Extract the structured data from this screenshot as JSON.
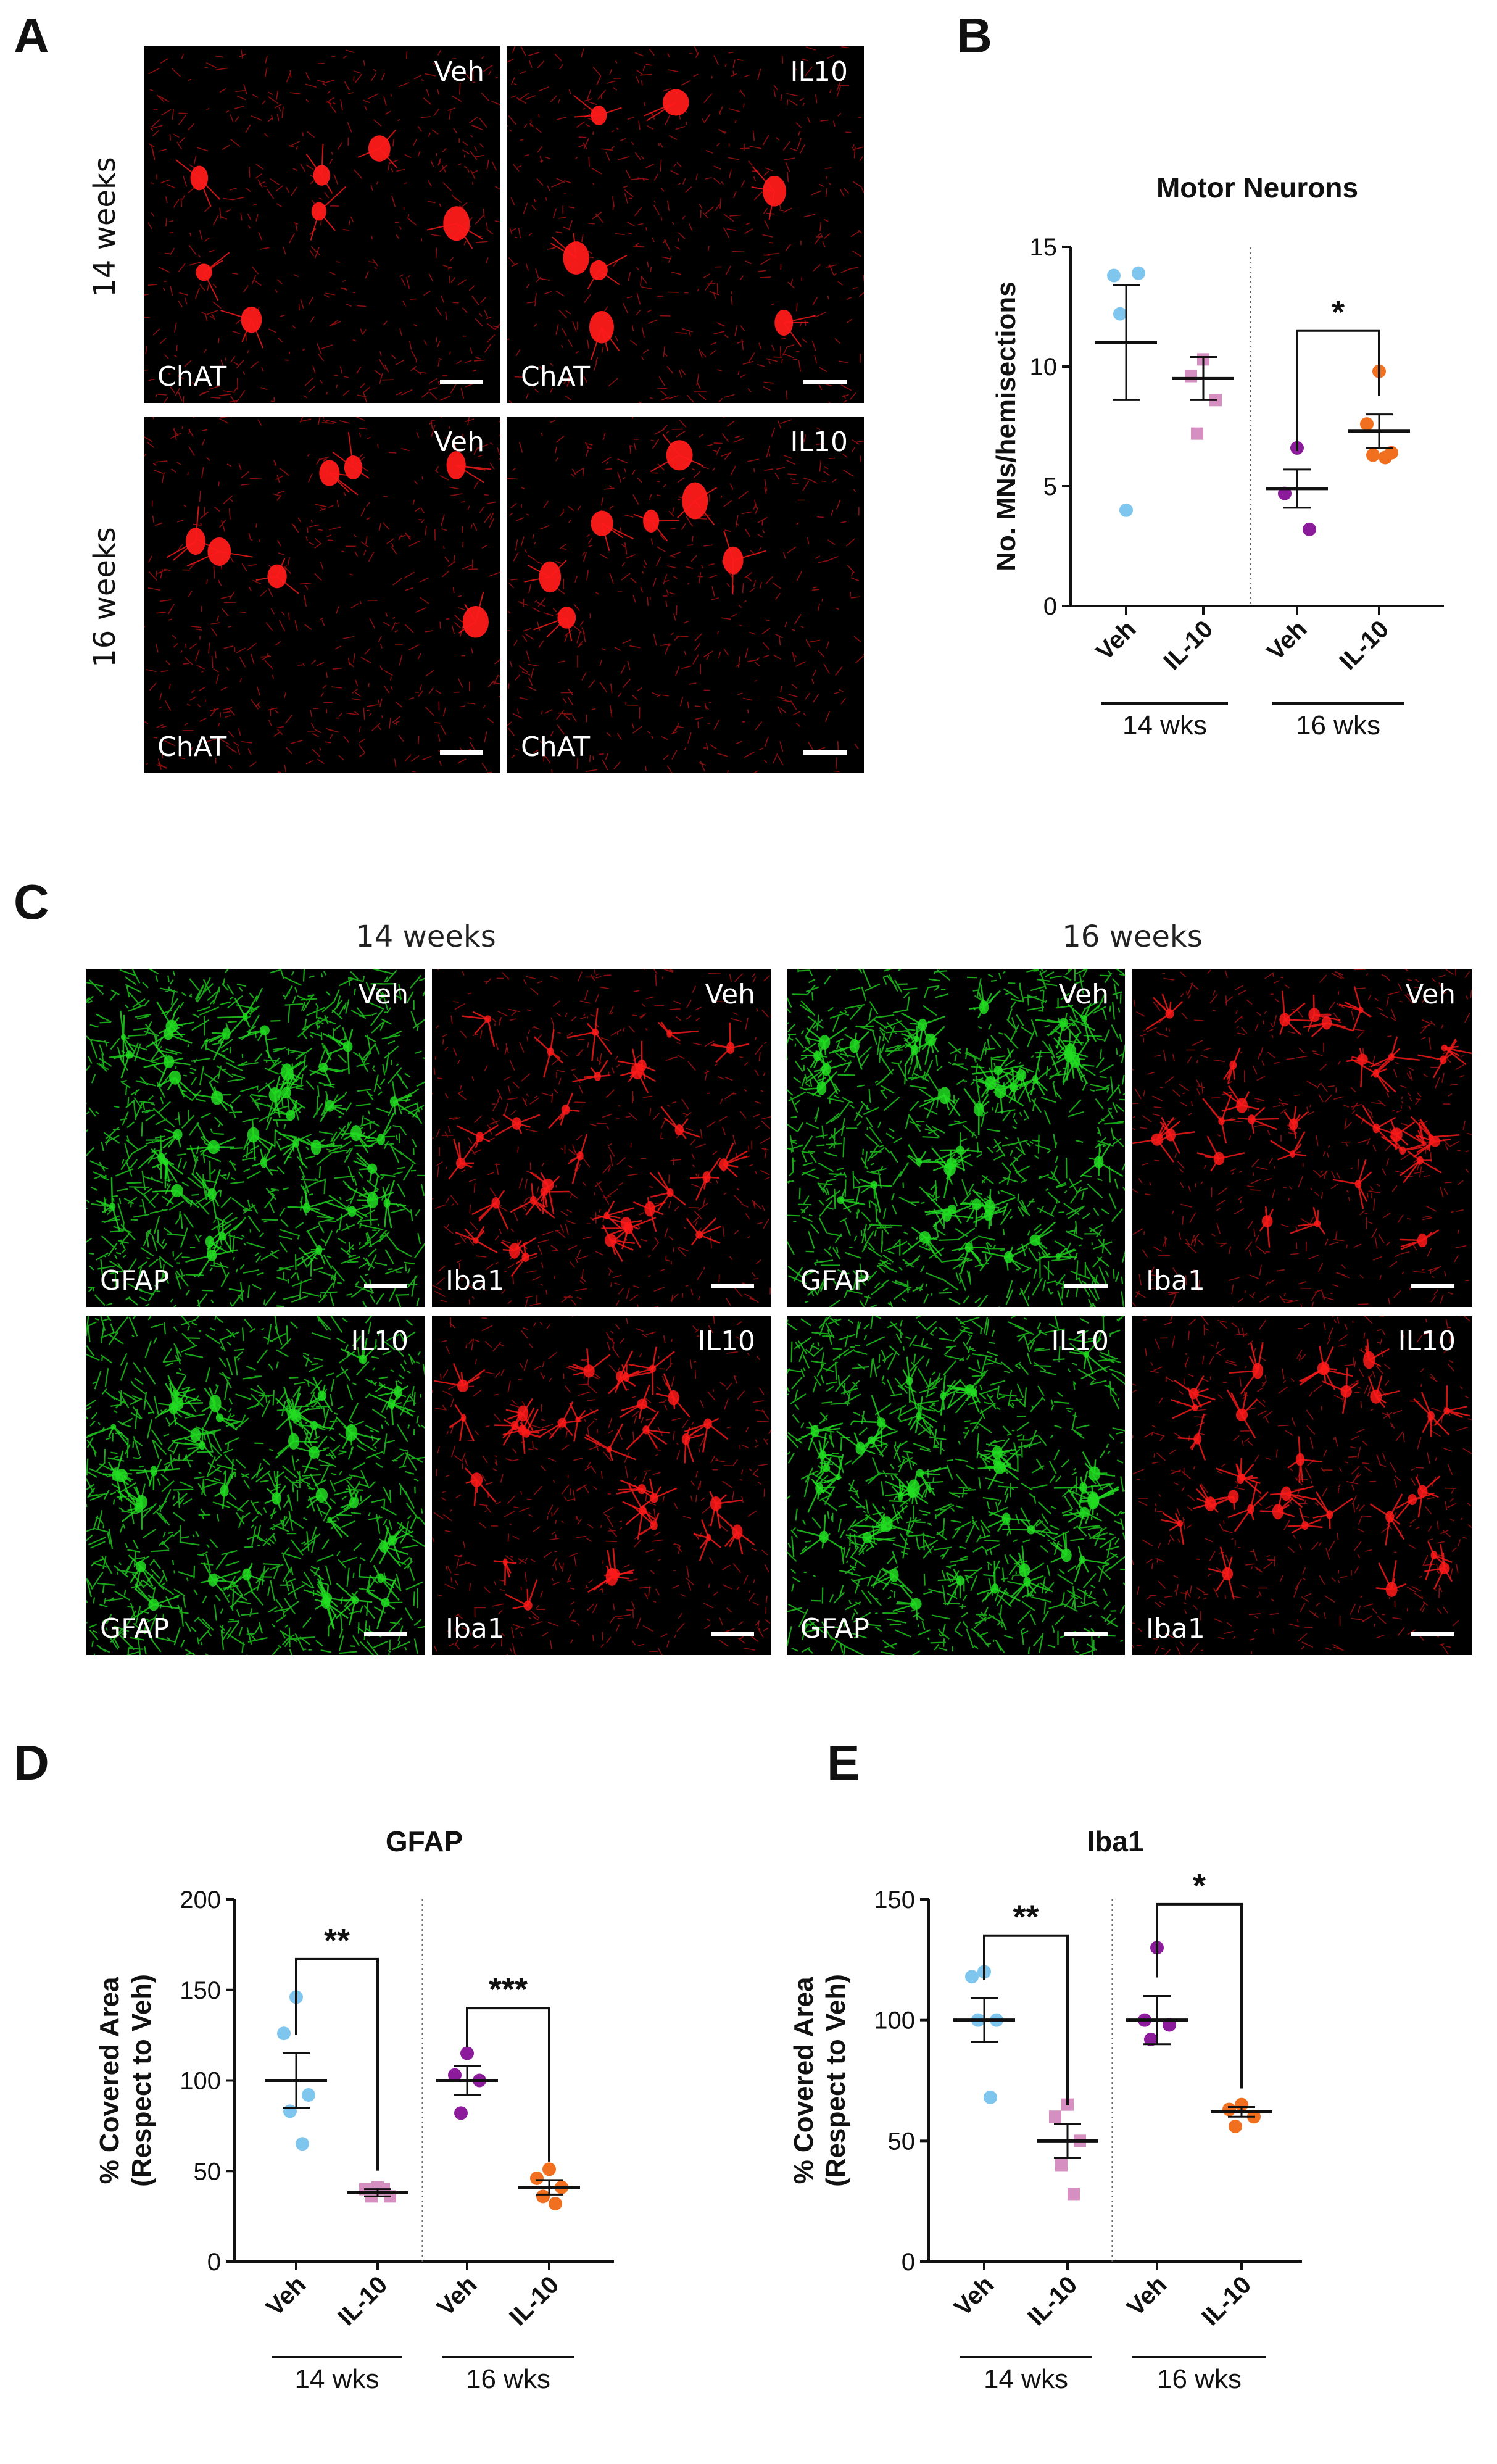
{
  "panel_letters": {
    "a": "A",
    "b": "B",
    "c": "C",
    "d": "D",
    "e": "E"
  },
  "panel_a": {
    "row_labels": [
      "14 weeks",
      "16 weeks"
    ],
    "tiles": [
      {
        "condition": "Veh",
        "stain": "ChAT",
        "color": "#ff1a1a"
      },
      {
        "condition": "IL10",
        "stain": "ChAT",
        "color": "#ff1a1a"
      },
      {
        "condition": "Veh",
        "stain": "ChAT",
        "color": "#ff1a1a"
      },
      {
        "condition": "IL10",
        "stain": "ChAT",
        "color": "#ff1a1a"
      }
    ]
  },
  "panel_c": {
    "group_headers": [
      "14 weeks",
      "16 weeks"
    ],
    "tiles": [
      {
        "condition": "Veh",
        "stain": "GFAP",
        "color": "#22dd22"
      },
      {
        "condition": "Veh",
        "stain": "Iba1",
        "color": "#ff1a1a"
      },
      {
        "condition": "Veh",
        "stain": "GFAP",
        "color": "#22dd22"
      },
      {
        "condition": "Veh",
        "stain": "Iba1",
        "color": "#ff1a1a"
      },
      {
        "condition": "IL10",
        "stain": "GFAP",
        "color": "#22dd22"
      },
      {
        "condition": "IL10",
        "stain": "Iba1",
        "color": "#ff1a1a"
      },
      {
        "condition": "IL10",
        "stain": "GFAP",
        "color": "#22dd22"
      },
      {
        "condition": "IL10",
        "stain": "Iba1",
        "color": "#ff1a1a"
      }
    ]
  },
  "chart_data": [
    {
      "id": "B",
      "type": "scatter",
      "title": "Motor Neurons",
      "xlabel": "",
      "ylabel": "No. MNs/hemisections",
      "ylim": [
        0,
        15
      ],
      "yticks": [
        0,
        5,
        10,
        15
      ],
      "categories": [
        "Veh",
        "IL-10",
        "Veh",
        "IL-10"
      ],
      "groups": [
        "14 wks",
        "16 wks"
      ],
      "grid": false,
      "series": [
        {
          "color": "#7ec6ee",
          "marker": "circle",
          "points": [
            4.0,
            13.8,
            13.9,
            12.2
          ],
          "mean": 11.0,
          "sem": 2.4
        },
        {
          "color": "#d58fc0",
          "marker": "square",
          "points": [
            10.3,
            9.6,
            8.6,
            7.2
          ],
          "mean": 9.5,
          "sem": 0.9
        },
        {
          "color": "#8b1b9a",
          "marker": "circle",
          "points": [
            6.6,
            4.7,
            3.2
          ],
          "mean": 4.9,
          "sem": 0.8
        },
        {
          "color": "#f07020",
          "marker": "circle",
          "points": [
            9.8,
            7.6,
            6.4,
            6.3,
            6.2
          ],
          "mean": 7.3,
          "sem": 0.7
        }
      ],
      "significance": [
        {
          "between": [
            2,
            3
          ],
          "label": "*",
          "y": 11.5
        }
      ]
    },
    {
      "id": "D",
      "type": "scatter",
      "title": "GFAP",
      "xlabel": "",
      "ylabel_lines": [
        "% Covered Area",
        "(Respect to Veh)"
      ],
      "ylim": [
        0,
        200
      ],
      "yticks": [
        0,
        50,
        100,
        150,
        200
      ],
      "categories": [
        "Veh",
        "IL-10",
        "Veh",
        "IL-10"
      ],
      "groups": [
        "14 wks",
        "16 wks"
      ],
      "grid": false,
      "series": [
        {
          "color": "#7ec6ee",
          "marker": "circle",
          "points": [
            146,
            126,
            92,
            83,
            65
          ],
          "mean": 100,
          "sem": 15
        },
        {
          "color": "#d58fc0",
          "marker": "square",
          "points": [
            41,
            40,
            36,
            36,
            40
          ],
          "mean": 38,
          "sem": 2
        },
        {
          "color": "#8b1b9a",
          "marker": "circle",
          "points": [
            115,
            103,
            100,
            82
          ],
          "mean": 100,
          "sem": 8
        },
        {
          "color": "#f07020",
          "marker": "circle",
          "points": [
            51,
            46,
            41,
            36,
            32
          ],
          "mean": 41,
          "sem": 4
        }
      ],
      "significance": [
        {
          "between": [
            0,
            1
          ],
          "label": "**",
          "y": 167
        },
        {
          "between": [
            2,
            3
          ],
          "label": "***",
          "y": 140
        }
      ]
    },
    {
      "id": "E",
      "type": "scatter",
      "title": "Iba1",
      "xlabel": "",
      "ylabel_lines": [
        "% Covered Area",
        "(Respect to Veh)"
      ],
      "ylim": [
        0,
        150
      ],
      "yticks": [
        0,
        50,
        100,
        150
      ],
      "categories": [
        "Veh",
        "IL-10",
        "Veh",
        "IL-10"
      ],
      "groups": [
        "14 wks",
        "16 wks"
      ],
      "grid": false,
      "series": [
        {
          "color": "#7ec6ee",
          "marker": "circle",
          "points": [
            120,
            118,
            100,
            100,
            68
          ],
          "mean": 100,
          "sem": 9
        },
        {
          "color": "#d58fc0",
          "marker": "square",
          "points": [
            65,
            60,
            50,
            40,
            28
          ],
          "mean": 50,
          "sem": 7
        },
        {
          "color": "#8b1b9a",
          "marker": "circle",
          "points": [
            130,
            100,
            98,
            92
          ],
          "mean": 100,
          "sem": 10
        },
        {
          "color": "#f07020",
          "marker": "circle",
          "points": [
            65,
            63,
            60,
            56
          ],
          "mean": 62,
          "sem": 2
        }
      ],
      "significance": [
        {
          "between": [
            0,
            1
          ],
          "label": "**",
          "y": 135
        },
        {
          "between": [
            2,
            3
          ],
          "label": "*",
          "y": 148
        }
      ]
    }
  ]
}
